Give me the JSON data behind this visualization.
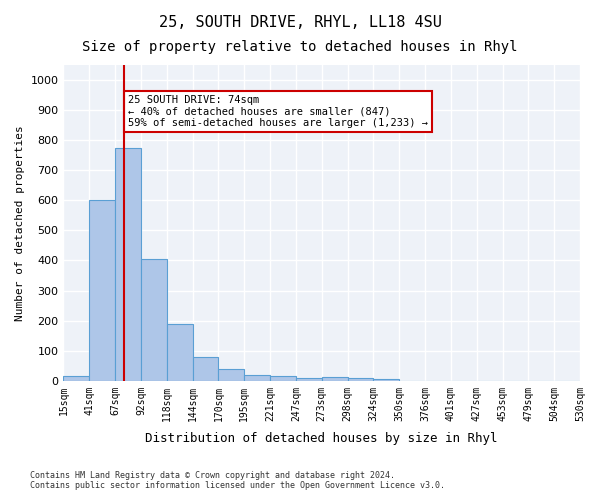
{
  "title1": "25, SOUTH DRIVE, RHYL, LL18 4SU",
  "title2": "Size of property relative to detached houses in Rhyl",
  "xlabel": "Distribution of detached houses by size in Rhyl",
  "ylabel": "Number of detached properties",
  "footnote": "Contains HM Land Registry data © Crown copyright and database right 2024.\nContains public sector information licensed under the Open Government Licence v3.0.",
  "bin_labels": [
    "15sqm",
    "41sqm",
    "67sqm",
    "92sqm",
    "118sqm",
    "144sqm",
    "170sqm",
    "195sqm",
    "221sqm",
    "247sqm",
    "273sqm",
    "298sqm",
    "324sqm",
    "350sqm",
    "376sqm",
    "401sqm",
    "427sqm",
    "453sqm",
    "479sqm",
    "504sqm",
    "530sqm"
  ],
  "bar_values": [
    15,
    600,
    775,
    405,
    190,
    78,
    40,
    18,
    17,
    10,
    13,
    8,
    5,
    0,
    0,
    0,
    0,
    0,
    0,
    0
  ],
  "bar_color": "#aec6e8",
  "bar_edge_color": "#5a9fd4",
  "red_line_x": 1.85,
  "annotation_text": "25 SOUTH DRIVE: 74sqm\n← 40% of detached houses are smaller (847)\n59% of semi-detached houses are larger (1,233) →",
  "annotation_box_color": "#ffffff",
  "annotation_box_edge": "#cc0000",
  "ylim": [
    0,
    1050
  ],
  "yticks": [
    0,
    100,
    200,
    300,
    400,
    500,
    600,
    700,
    800,
    900,
    1000
  ],
  "background_color": "#eef2f8",
  "grid_color": "#ffffff",
  "title1_fontsize": 11,
  "title2_fontsize": 10
}
